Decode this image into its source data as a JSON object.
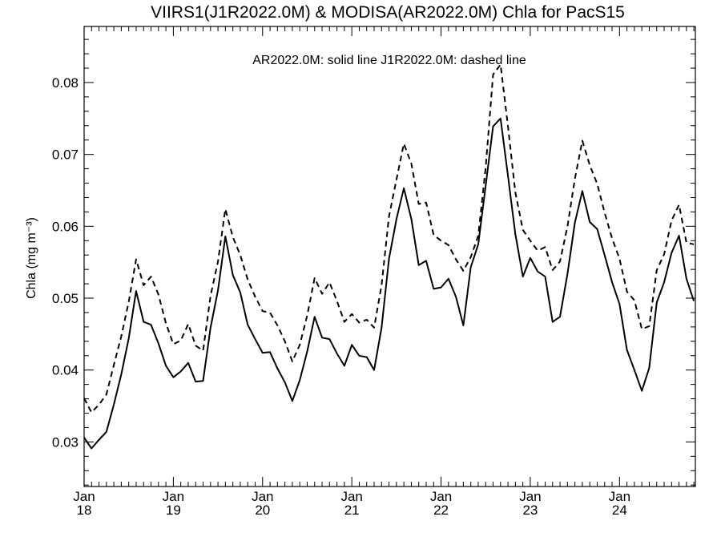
{
  "chart_data": {
    "type": "line",
    "title": "VIIRS1(J1R2022.0M) & MODISA(AR2022.0M)  Chla for PacS15",
    "annotation": "AR2022.0M: solid line   J1R2022.0M: dashed line",
    "ylabel": "Chla (mg m⁻³)",
    "xlabel": "",
    "ylim": [
      0.0238,
      0.0878
    ],
    "xlim": [
      2018.0,
      2024.85
    ],
    "y_ticks": [
      {
        "value": 0.03,
        "label": "0.03"
      },
      {
        "value": 0.04,
        "label": "0.04"
      },
      {
        "value": 0.05,
        "label": "0.05"
      },
      {
        "value": 0.06,
        "label": "0.06"
      },
      {
        "value": 0.07,
        "label": "0.07"
      },
      {
        "value": 0.08,
        "label": "0.08"
      }
    ],
    "x_ticks": [
      {
        "value": 2018,
        "month": "Jan",
        "year": "18"
      },
      {
        "value": 2019,
        "month": "Jan",
        "year": "19"
      },
      {
        "value": 2020,
        "month": "Jan",
        "year": "20"
      },
      {
        "value": 2021,
        "month": "Jan",
        "year": "21"
      },
      {
        "value": 2022,
        "month": "Jan",
        "year": "22"
      },
      {
        "value": 2023,
        "month": "Jan",
        "year": "23"
      },
      {
        "value": 2024,
        "month": "Jan",
        "year": "24"
      }
    ],
    "grid": false,
    "series": [
      {
        "name": "AR2022.0M",
        "style": "solid",
        "x": [
          2018.0,
          2018.083,
          2018.167,
          2018.25,
          2018.333,
          2018.417,
          2018.5,
          2018.583,
          2018.667,
          2018.75,
          2018.833,
          2018.917,
          2019.0,
          2019.083,
          2019.167,
          2019.25,
          2019.333,
          2019.417,
          2019.5,
          2019.583,
          2019.667,
          2019.75,
          2019.833,
          2019.917,
          2020.0,
          2020.083,
          2020.167,
          2020.25,
          2020.333,
          2020.417,
          2020.5,
          2020.583,
          2020.667,
          2020.75,
          2020.833,
          2020.917,
          2021.0,
          2021.083,
          2021.167,
          2021.25,
          2021.333,
          2021.417,
          2021.5,
          2021.583,
          2021.667,
          2021.75,
          2021.833,
          2021.917,
          2022.0,
          2022.083,
          2022.167,
          2022.25,
          2022.333,
          2022.417,
          2022.5,
          2022.583,
          2022.667,
          2022.75,
          2022.833,
          2022.917,
          2023.0,
          2023.083,
          2023.167,
          2023.25,
          2023.333,
          2023.417,
          2023.5,
          2023.583,
          2023.667,
          2023.75,
          2023.833,
          2023.917,
          2024.0,
          2024.083,
          2024.167,
          2024.25,
          2024.333,
          2024.417,
          2024.5,
          2024.583,
          2024.667,
          2024.75,
          2024.833
        ],
        "values": [
          0.0306,
          0.0291,
          0.0303,
          0.0314,
          0.0352,
          0.0394,
          0.0444,
          0.051,
          0.0467,
          0.0463,
          0.0437,
          0.0406,
          0.039,
          0.0398,
          0.041,
          0.0384,
          0.0385,
          0.0459,
          0.0511,
          0.0586,
          0.0532,
          0.0508,
          0.0463,
          0.0443,
          0.0424,
          0.0425,
          0.0402,
          0.0383,
          0.0357,
          0.0386,
          0.0426,
          0.0474,
          0.0445,
          0.0443,
          0.0423,
          0.0406,
          0.0435,
          0.042,
          0.0418,
          0.04,
          0.0459,
          0.0555,
          0.061,
          0.0653,
          0.061,
          0.0546,
          0.0552,
          0.0513,
          0.0515,
          0.0527,
          0.0502,
          0.0462,
          0.0543,
          0.0575,
          0.0656,
          0.0739,
          0.075,
          0.067,
          0.0589,
          0.053,
          0.0556,
          0.0537,
          0.053,
          0.0467,
          0.0474,
          0.0534,
          0.0605,
          0.0649,
          0.0606,
          0.0596,
          0.056,
          0.0522,
          0.0492,
          0.0428,
          0.04,
          0.0371,
          0.0403,
          0.0494,
          0.0522,
          0.0563,
          0.0587,
          0.0527,
          0.0496
        ]
      },
      {
        "name": "J1R2022.0M",
        "style": "dashed",
        "x": [
          2018.0,
          2018.083,
          2018.167,
          2018.25,
          2018.333,
          2018.417,
          2018.5,
          2018.583,
          2018.667,
          2018.75,
          2018.833,
          2018.917,
          2019.0,
          2019.083,
          2019.167,
          2019.25,
          2019.333,
          2019.417,
          2019.5,
          2019.583,
          2019.667,
          2019.75,
          2019.833,
          2019.917,
          2020.0,
          2020.083,
          2020.167,
          2020.25,
          2020.333,
          2020.417,
          2020.5,
          2020.583,
          2020.667,
          2020.75,
          2020.833,
          2020.917,
          2021.0,
          2021.083,
          2021.167,
          2021.25,
          2021.333,
          2021.417,
          2021.5,
          2021.583,
          2021.667,
          2021.75,
          2021.833,
          2021.917,
          2022.0,
          2022.083,
          2022.167,
          2022.25,
          2022.333,
          2022.417,
          2022.5,
          2022.583,
          2022.667,
          2022.75,
          2022.833,
          2022.917,
          2023.0,
          2023.083,
          2023.167,
          2023.25,
          2023.333,
          2023.417,
          2023.5,
          2023.583,
          2023.667,
          2023.75,
          2023.833,
          2023.917,
          2024.0,
          2024.083,
          2024.167,
          2024.25,
          2024.333,
          2024.417,
          2024.5,
          2024.583,
          2024.667,
          2024.75,
          2024.833
        ],
        "values": [
          0.0361,
          0.0341,
          0.0352,
          0.0366,
          0.0407,
          0.0447,
          0.0495,
          0.0554,
          0.0518,
          0.053,
          0.0505,
          0.0465,
          0.0436,
          0.0441,
          0.0464,
          0.0434,
          0.0427,
          0.0503,
          0.0551,
          0.0624,
          0.0585,
          0.056,
          0.0526,
          0.0502,
          0.0482,
          0.048,
          0.0462,
          0.044,
          0.0412,
          0.0435,
          0.0476,
          0.0528,
          0.0506,
          0.0522,
          0.0496,
          0.0467,
          0.0478,
          0.0466,
          0.047,
          0.0459,
          0.0518,
          0.0614,
          0.0665,
          0.0715,
          0.0687,
          0.0631,
          0.0633,
          0.0588,
          0.058,
          0.0574,
          0.0554,
          0.0538,
          0.0557,
          0.0587,
          0.0681,
          0.0811,
          0.0825,
          0.0739,
          0.0647,
          0.0595,
          0.058,
          0.0566,
          0.0571,
          0.0539,
          0.0551,
          0.06,
          0.0666,
          0.0719,
          0.0685,
          0.0659,
          0.0619,
          0.0583,
          0.0555,
          0.0509,
          0.0497,
          0.0457,
          0.0461,
          0.0539,
          0.0561,
          0.0608,
          0.063,
          0.0577,
          0.0575
        ]
      }
    ]
  }
}
